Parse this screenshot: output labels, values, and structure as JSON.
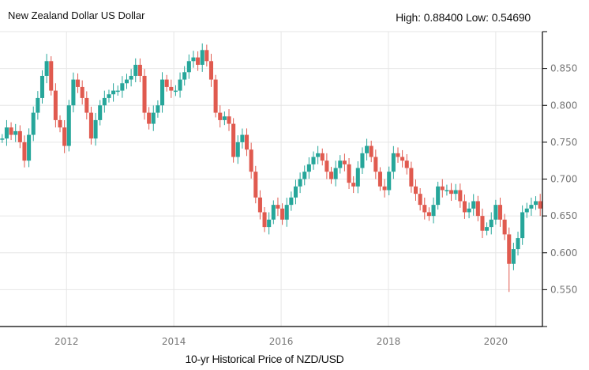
{
  "header": {
    "title": "New Zealand Dollar US Dollar",
    "high_label": "High:",
    "high_value": "0.88400",
    "low_label": "Low:",
    "low_value": "0.54690"
  },
  "chart_data": {
    "type": "candlestick",
    "title": "New Zealand Dollar US Dollar",
    "xlabel": "10-yr Historical Price of NZD/USD",
    "ylabel": "",
    "start": "2010-10",
    "interval": "month",
    "xlim": [
      2010.76,
      2020.87
    ],
    "ylim": [
      0.5,
      0.9
    ],
    "x_ticks": [
      2012,
      2014,
      2016,
      2018,
      2020
    ],
    "x_tick_labels": [
      "2012",
      "2014",
      "2016",
      "2018",
      "2020"
    ],
    "y_ticks": [
      0.55,
      0.6,
      0.65,
      0.7,
      0.75,
      0.8,
      0.85
    ],
    "y_tick_labels": [
      "0.550",
      "0.600",
      "0.650",
      "0.700",
      "0.750",
      "0.800",
      "0.850"
    ],
    "grid": true,
    "high": 0.884,
    "low": 0.5469,
    "colors": {
      "up": "#26a69a",
      "down": "#e05a4f"
    },
    "close": [
      0.755,
      0.77,
      0.76,
      0.765,
      0.75,
      0.725,
      0.76,
      0.79,
      0.81,
      0.84,
      0.86,
      0.82,
      0.78,
      0.77,
      0.745,
      0.8,
      0.835,
      0.825,
      0.81,
      0.79,
      0.755,
      0.78,
      0.8,
      0.81,
      0.815,
      0.82,
      0.82,
      0.83,
      0.835,
      0.84,
      0.855,
      0.84,
      0.79,
      0.775,
      0.79,
      0.8,
      0.835,
      0.825,
      0.82,
      0.82,
      0.835,
      0.845,
      0.86,
      0.865,
      0.855,
      0.875,
      0.86,
      0.835,
      0.79,
      0.78,
      0.785,
      0.775,
      0.73,
      0.75,
      0.76,
      0.74,
      0.71,
      0.675,
      0.655,
      0.635,
      0.645,
      0.665,
      0.66,
      0.645,
      0.665,
      0.675,
      0.69,
      0.7,
      0.71,
      0.72,
      0.73,
      0.735,
      0.725,
      0.71,
      0.7,
      0.715,
      0.725,
      0.72,
      0.695,
      0.69,
      0.715,
      0.735,
      0.745,
      0.73,
      0.71,
      0.69,
      0.685,
      0.71,
      0.735,
      0.73,
      0.725,
      0.715,
      0.69,
      0.68,
      0.665,
      0.655,
      0.65,
      0.665,
      0.69,
      0.685,
      0.685,
      0.68,
      0.685,
      0.67,
      0.655,
      0.66,
      0.67,
      0.65,
      0.63,
      0.635,
      0.645,
      0.665,
      0.645,
      0.625,
      0.585,
      0.605,
      0.62,
      0.655,
      0.66,
      0.665,
      0.67,
      0.66
    ]
  }
}
